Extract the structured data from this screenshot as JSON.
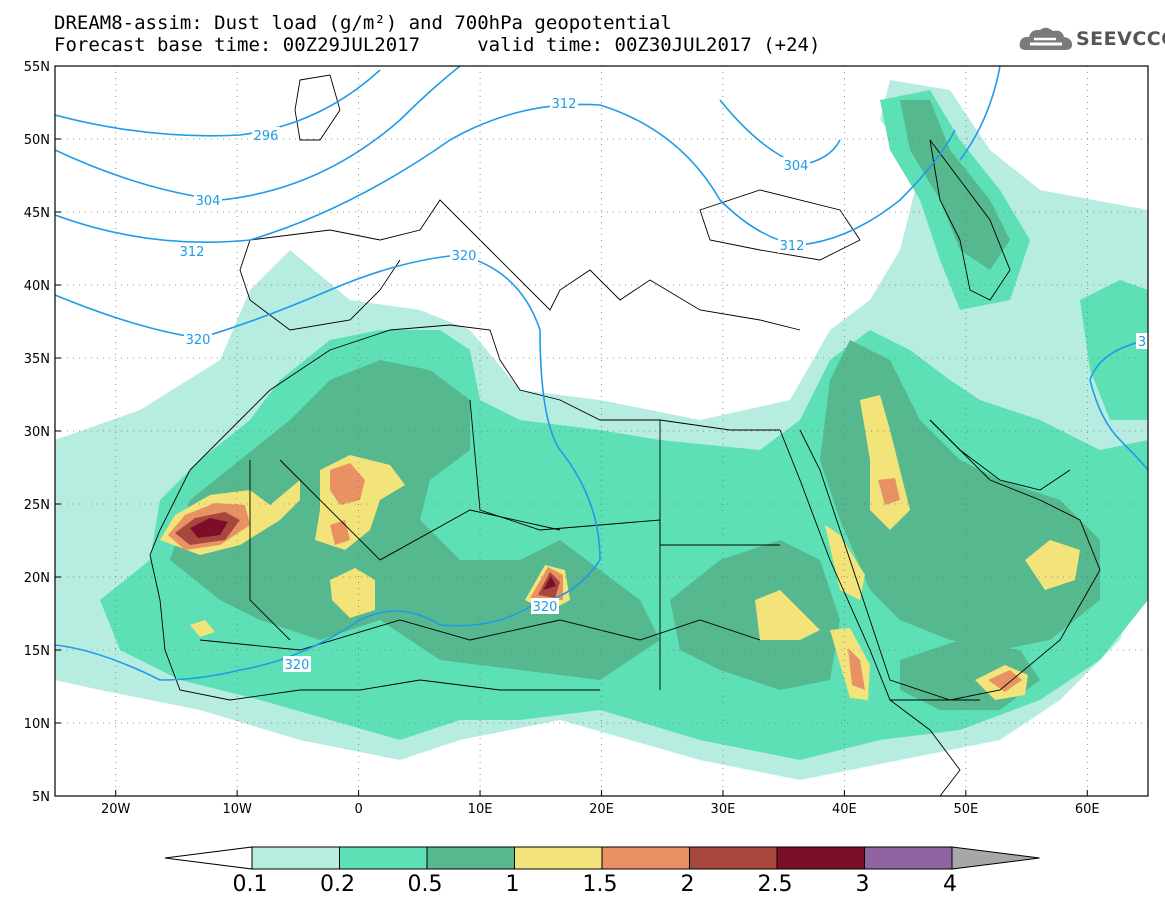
{
  "title": {
    "line1": "DREAM8-assim: Dust load (g/m²) and 700hPa geopotential",
    "line2": "Forecast base time: 00Z29JUL2017     valid time: 00Z30JUL2017 (+24)"
  },
  "logo": {
    "text": "SEEVCCC",
    "icon": "cloud-icon"
  },
  "map": {
    "lon_ticks": [
      "20W",
      "10W",
      "0",
      "10E",
      "20E",
      "30E",
      "40E",
      "50E",
      "60E"
    ],
    "lat_ticks": [
      "55N",
      "50N",
      "45N",
      "40N",
      "35N",
      "30N",
      "25N",
      "20N",
      "15N",
      "10N",
      "5N"
    ],
    "lon_range": [
      -25,
      65
    ],
    "lat_range": [
      5,
      55
    ],
    "contour_labels": [
      "296",
      "304",
      "312",
      "312",
      "304",
      "312",
      "320",
      "320",
      "320",
      "320",
      "3"
    ]
  },
  "colorbar": {
    "labels": [
      "0.1",
      "0.2",
      "0.5",
      "1",
      "1.5",
      "2",
      "2.5",
      "3",
      "4"
    ],
    "colors": [
      "#b7ede0",
      "#5ee0b7",
      "#55b88e",
      "#f2e47a",
      "#e89163",
      "#a8473d",
      "#7d0e2a",
      "#8f64a0",
      "#a7a7a7"
    ]
  },
  "colors": {
    "very_light": "#b7ede0",
    "light": "#5ee0b7",
    "mid": "#55b88e",
    "yellow": "#f2e47a",
    "orange": "#e89163",
    "brown": "#a8473d",
    "dark": "#7d0e2a",
    "contour": "#1f9be8"
  }
}
